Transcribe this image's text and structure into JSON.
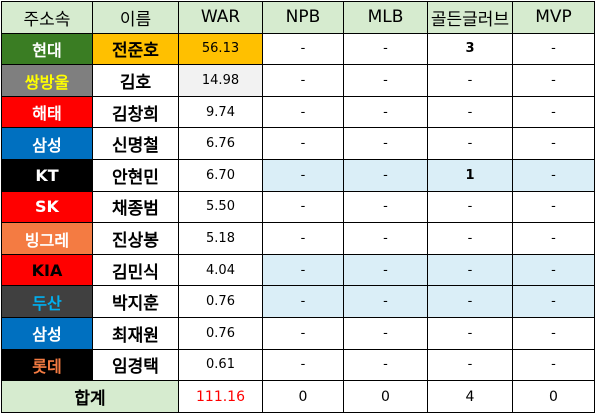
{
  "headers": [
    "주소속",
    "이름",
    "WAR",
    "NPB",
    "MLB",
    "골든글러브",
    "MVP"
  ],
  "rows": [
    {
      "team": "현대",
      "team_bg": "#3a7d23",
      "team_fg": "#ffffff",
      "name": "전준호",
      "war": "56.13",
      "npb": "-",
      "mlb": "-",
      "gg": "3",
      "mvp": "-",
      "highlight": false
    },
    {
      "team": "쌍방울",
      "team_bg": "#7f7f7f",
      "team_fg": "#ffff00",
      "name": "김호",
      "war": "14.98",
      "npb": "-",
      "mlb": "-",
      "gg": "-",
      "mvp": "-",
      "highlight": false
    },
    {
      "team": "해태",
      "team_bg": "#ff0000",
      "team_fg": "#ffffff",
      "name": "김창희",
      "war": "9.74",
      "npb": "-",
      "mlb": "-",
      "gg": "-",
      "mvp": "-",
      "highlight": false
    },
    {
      "team": "삼성",
      "team_bg": "#0070c0",
      "team_fg": "#ffffff",
      "name": "신명철",
      "war": "6.76",
      "npb": "-",
      "mlb": "-",
      "gg": "-",
      "mvp": "-",
      "highlight": false
    },
    {
      "team": "KT",
      "team_bg": "#000000",
      "team_fg": "#ffffff",
      "name": "안현민",
      "war": "6.70",
      "npb": "-",
      "mlb": "-",
      "gg": "1",
      "mvp": "-",
      "highlight": true
    },
    {
      "team": "SK",
      "team_bg": "#ff0000",
      "team_fg": "#ffffff",
      "name": "채종범",
      "war": "5.50",
      "npb": "-",
      "mlb": "-",
      "gg": "-",
      "mvp": "-",
      "highlight": false
    },
    {
      "team": "빙그레",
      "team_bg": "#f47b42",
      "team_fg": "#ffffff",
      "name": "진상봉",
      "war": "5.18",
      "npb": "-",
      "mlb": "-",
      "gg": "-",
      "mvp": "-",
      "highlight": false
    },
    {
      "team": "KIA",
      "team_bg": "#ff0000",
      "team_fg": "#000000",
      "name": "김민식",
      "war": "4.04",
      "npb": "-",
      "mlb": "-",
      "gg": "-",
      "mvp": "-",
      "highlight": true
    },
    {
      "team": "두산",
      "team_bg": "#404040",
      "team_fg": "#00b0f0",
      "name": "박지훈",
      "war": "0.76",
      "npb": "-",
      "mlb": "-",
      "gg": "-",
      "mvp": "-",
      "highlight": true
    },
    {
      "team": "삼성",
      "team_bg": "#0070c0",
      "team_fg": "#ffffff",
      "name": "최재원",
      "war": "0.76",
      "npb": "-",
      "mlb": "-",
      "gg": "-",
      "mvp": "-",
      "highlight": false
    },
    {
      "team": "롯데",
      "team_bg": "#000000",
      "team_fg": "#f47b42",
      "name": "임경택",
      "war": "0.61",
      "npb": "-",
      "mlb": "-",
      "gg": "-",
      "mvp": "-",
      "highlight": false
    }
  ],
  "total": {
    "label": "합계",
    "war": "111.16",
    "npb": "0",
    "mlb": "0",
    "gg": "4",
    "mvp": "0"
  }
}
